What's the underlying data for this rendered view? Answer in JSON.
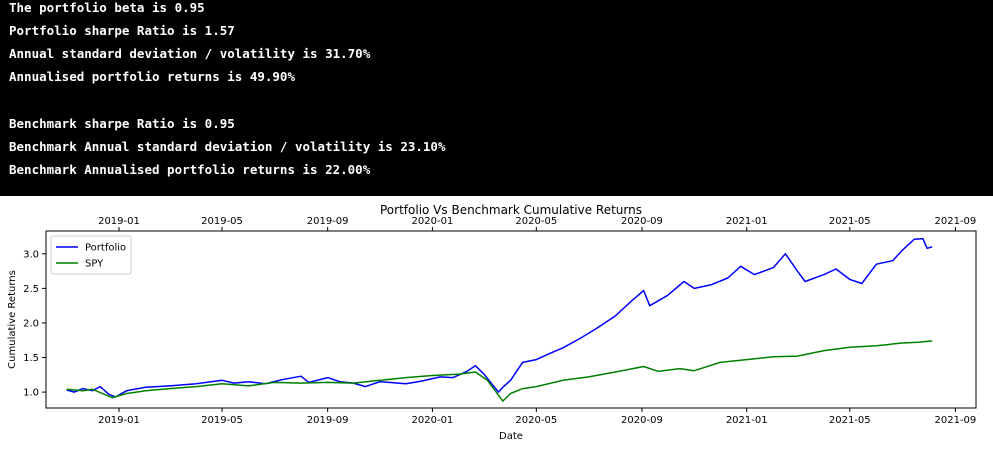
{
  "terminal": {
    "lines": [
      "The portfolio beta is 0.95",
      "Portfolio sharpe Ratio is 1.57",
      "Annual standard deviation / volatility is 31.70%",
      "Annualised portfolio returns is 49.90%",
      "",
      "Benchmark sharpe Ratio is 0.95",
      "Benchmark Annual standard deviation / volatility is 23.10%",
      "Benchmark Annualised portfolio returns is 22.00%"
    ]
  },
  "chart_data": {
    "type": "line",
    "title": "Portfolio Vs Benchmark Cumulative Returns",
    "xlabel": "Date",
    "ylabel": "Cumulative Returns",
    "x_ticks": [
      "2019-01",
      "2019-05",
      "2019-09",
      "2020-01",
      "2020-05",
      "2020-09",
      "2021-01",
      "2021-05",
      "2021-09"
    ],
    "y_ticks": [
      "1.0",
      "1.5",
      "2.0",
      "2.5",
      "3.0"
    ],
    "ylim": [
      0.77,
      3.33
    ],
    "xlim": [
      "2018-10-08",
      "2021-09-25"
    ],
    "legend_position": "top-left",
    "grid": false,
    "series": [
      {
        "name": "Portfolio",
        "color": "#0000ff",
        "points": [
          [
            "2018-11-01",
            1.03
          ],
          [
            "2018-11-10",
            1.0
          ],
          [
            "2018-11-20",
            1.05
          ],
          [
            "2018-12-01",
            1.02
          ],
          [
            "2018-12-10",
            1.08
          ],
          [
            "2018-12-20",
            0.97
          ],
          [
            "2018-12-28",
            0.93
          ],
          [
            "2019-01-10",
            1.02
          ],
          [
            "2019-02-01",
            1.07
          ],
          [
            "2019-03-01",
            1.09
          ],
          [
            "2019-04-01",
            1.12
          ],
          [
            "2019-05-01",
            1.17
          ],
          [
            "2019-05-15",
            1.13
          ],
          [
            "2019-06-01",
            1.15
          ],
          [
            "2019-06-20",
            1.12
          ],
          [
            "2019-07-10",
            1.18
          ],
          [
            "2019-08-01",
            1.23
          ],
          [
            "2019-08-10",
            1.14
          ],
          [
            "2019-09-01",
            1.21
          ],
          [
            "2019-09-15",
            1.15
          ],
          [
            "2019-10-01",
            1.13
          ],
          [
            "2019-10-15",
            1.08
          ],
          [
            "2019-11-01",
            1.15
          ],
          [
            "2019-12-01",
            1.12
          ],
          [
            "2019-12-20",
            1.16
          ],
          [
            "2020-01-10",
            1.22
          ],
          [
            "2020-01-25",
            1.21
          ],
          [
            "2020-02-10",
            1.3
          ],
          [
            "2020-02-20",
            1.38
          ],
          [
            "2020-03-01",
            1.26
          ],
          [
            "2020-03-10",
            1.12
          ],
          [
            "2020-03-18",
            1.0
          ],
          [
            "2020-03-23",
            1.07
          ],
          [
            "2020-04-01",
            1.17
          ],
          [
            "2020-04-15",
            1.43
          ],
          [
            "2020-05-01",
            1.47
          ],
          [
            "2020-05-15",
            1.55
          ],
          [
            "2020-06-01",
            1.64
          ],
          [
            "2020-06-20",
            1.77
          ],
          [
            "2020-07-10",
            1.92
          ],
          [
            "2020-08-01",
            2.1
          ],
          [
            "2020-08-20",
            2.32
          ],
          [
            "2020-09-03",
            2.47
          ],
          [
            "2020-09-10",
            2.25
          ],
          [
            "2020-10-01",
            2.4
          ],
          [
            "2020-10-20",
            2.6
          ],
          [
            "2020-11-01",
            2.5
          ],
          [
            "2020-11-20",
            2.55
          ],
          [
            "2020-12-10",
            2.65
          ],
          [
            "2020-12-25",
            2.82
          ],
          [
            "2021-01-10",
            2.7
          ],
          [
            "2021-02-01",
            2.8
          ],
          [
            "2021-02-15",
            3.0
          ],
          [
            "2021-03-01",
            2.75
          ],
          [
            "2021-03-10",
            2.6
          ],
          [
            "2021-04-01",
            2.7
          ],
          [
            "2021-04-15",
            2.78
          ],
          [
            "2021-05-01",
            2.63
          ],
          [
            "2021-05-15",
            2.57
          ],
          [
            "2021-06-01",
            2.85
          ],
          [
            "2021-06-20",
            2.9
          ],
          [
            "2021-07-01",
            3.05
          ],
          [
            "2021-07-15",
            3.21
          ],
          [
            "2021-07-25",
            3.22
          ],
          [
            "2021-07-30",
            3.08
          ],
          [
            "2021-08-05",
            3.1
          ]
        ]
      },
      {
        "name": "SPY",
        "color": "#008000",
        "points": [
          [
            "2018-11-01",
            1.04
          ],
          [
            "2018-11-20",
            1.02
          ],
          [
            "2018-12-01",
            1.04
          ],
          [
            "2018-12-24",
            0.92
          ],
          [
            "2019-01-10",
            0.98
          ],
          [
            "2019-02-01",
            1.02
          ],
          [
            "2019-03-01",
            1.05
          ],
          [
            "2019-04-01",
            1.08
          ],
          [
            "2019-05-01",
            1.12
          ],
          [
            "2019-06-01",
            1.09
          ],
          [
            "2019-07-01",
            1.14
          ],
          [
            "2019-08-01",
            1.13
          ],
          [
            "2019-09-01",
            1.14
          ],
          [
            "2019-10-01",
            1.13
          ],
          [
            "2019-11-01",
            1.17
          ],
          [
            "2019-12-01",
            1.21
          ],
          [
            "2020-01-01",
            1.24
          ],
          [
            "2020-02-01",
            1.26
          ],
          [
            "2020-02-20",
            1.29
          ],
          [
            "2020-03-05",
            1.17
          ],
          [
            "2020-03-23",
            0.87
          ],
          [
            "2020-04-01",
            0.98
          ],
          [
            "2020-04-15",
            1.05
          ],
          [
            "2020-05-01",
            1.08
          ],
          [
            "2020-06-01",
            1.17
          ],
          [
            "2020-07-01",
            1.22
          ],
          [
            "2020-08-01",
            1.29
          ],
          [
            "2020-09-03",
            1.37
          ],
          [
            "2020-09-20",
            1.3
          ],
          [
            "2020-10-15",
            1.34
          ],
          [
            "2020-11-01",
            1.31
          ],
          [
            "2020-12-01",
            1.43
          ],
          [
            "2021-01-01",
            1.47
          ],
          [
            "2021-02-01",
            1.51
          ],
          [
            "2021-03-01",
            1.52
          ],
          [
            "2021-04-01",
            1.6
          ],
          [
            "2021-05-01",
            1.65
          ],
          [
            "2021-06-01",
            1.67
          ],
          [
            "2021-07-01",
            1.71
          ],
          [
            "2021-07-20",
            1.72
          ],
          [
            "2021-08-05",
            1.74
          ]
        ]
      }
    ]
  }
}
